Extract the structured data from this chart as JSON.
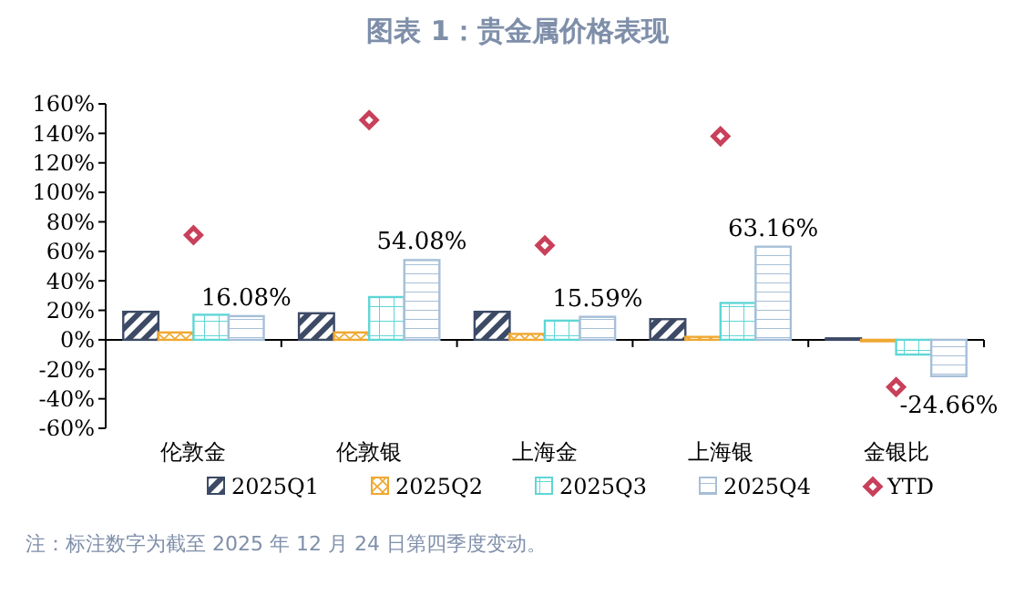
{
  "chart_data": {
    "type": "bar",
    "title": "图表 1：贵金属价格表现",
    "categories": [
      "伦敦金",
      "伦敦银",
      "上海金",
      "上海银",
      "金银比"
    ],
    "ylim": [
      -60,
      160
    ],
    "yticks": [
      {
        "value": -60,
        "label": "-60%"
      },
      {
        "value": -40,
        "label": "-40%"
      },
      {
        "value": -20,
        "label": "-20%"
      },
      {
        "value": 0,
        "label": "0%"
      },
      {
        "value": 20,
        "label": "20%"
      },
      {
        "value": 40,
        "label": "40%"
      },
      {
        "value": 60,
        "label": "60%"
      },
      {
        "value": 80,
        "label": "80%"
      },
      {
        "value": 100,
        "label": "100%"
      },
      {
        "value": 120,
        "label": "120%"
      },
      {
        "value": 140,
        "label": "140%"
      },
      {
        "value": 160,
        "label": "160%"
      }
    ],
    "legend": "bottom",
    "marker": "diamond",
    "series": [
      {
        "name": "2025Q1",
        "color": "#3d4a66",
        "values": [
          19,
          18,
          19,
          14,
          1
        ]
      },
      {
        "name": "2025Q2",
        "color": "#f0a830",
        "values": [
          5,
          5,
          4,
          2,
          -1
        ]
      },
      {
        "name": "2025Q3",
        "color": "#5fd6d6",
        "values": [
          17,
          29,
          13,
          25,
          -10
        ]
      },
      {
        "name": "2025Q4",
        "color": "#a6bfd8",
        "values": [
          16.08,
          54.08,
          15.59,
          63.16,
          -24.66
        ],
        "value_labels": [
          "16.08%",
          "54.08%",
          "15.59%",
          "63.16%",
          "-24.66%"
        ]
      },
      {
        "name": "YTD",
        "type": "scatter",
        "color": "#c8405a",
        "values": [
          71,
          149,
          64,
          138,
          -32
        ]
      }
    ],
    "annotations": [
      "注：标注数字为截至 2025 年 12 月 24 日第四季度变动。"
    ]
  }
}
